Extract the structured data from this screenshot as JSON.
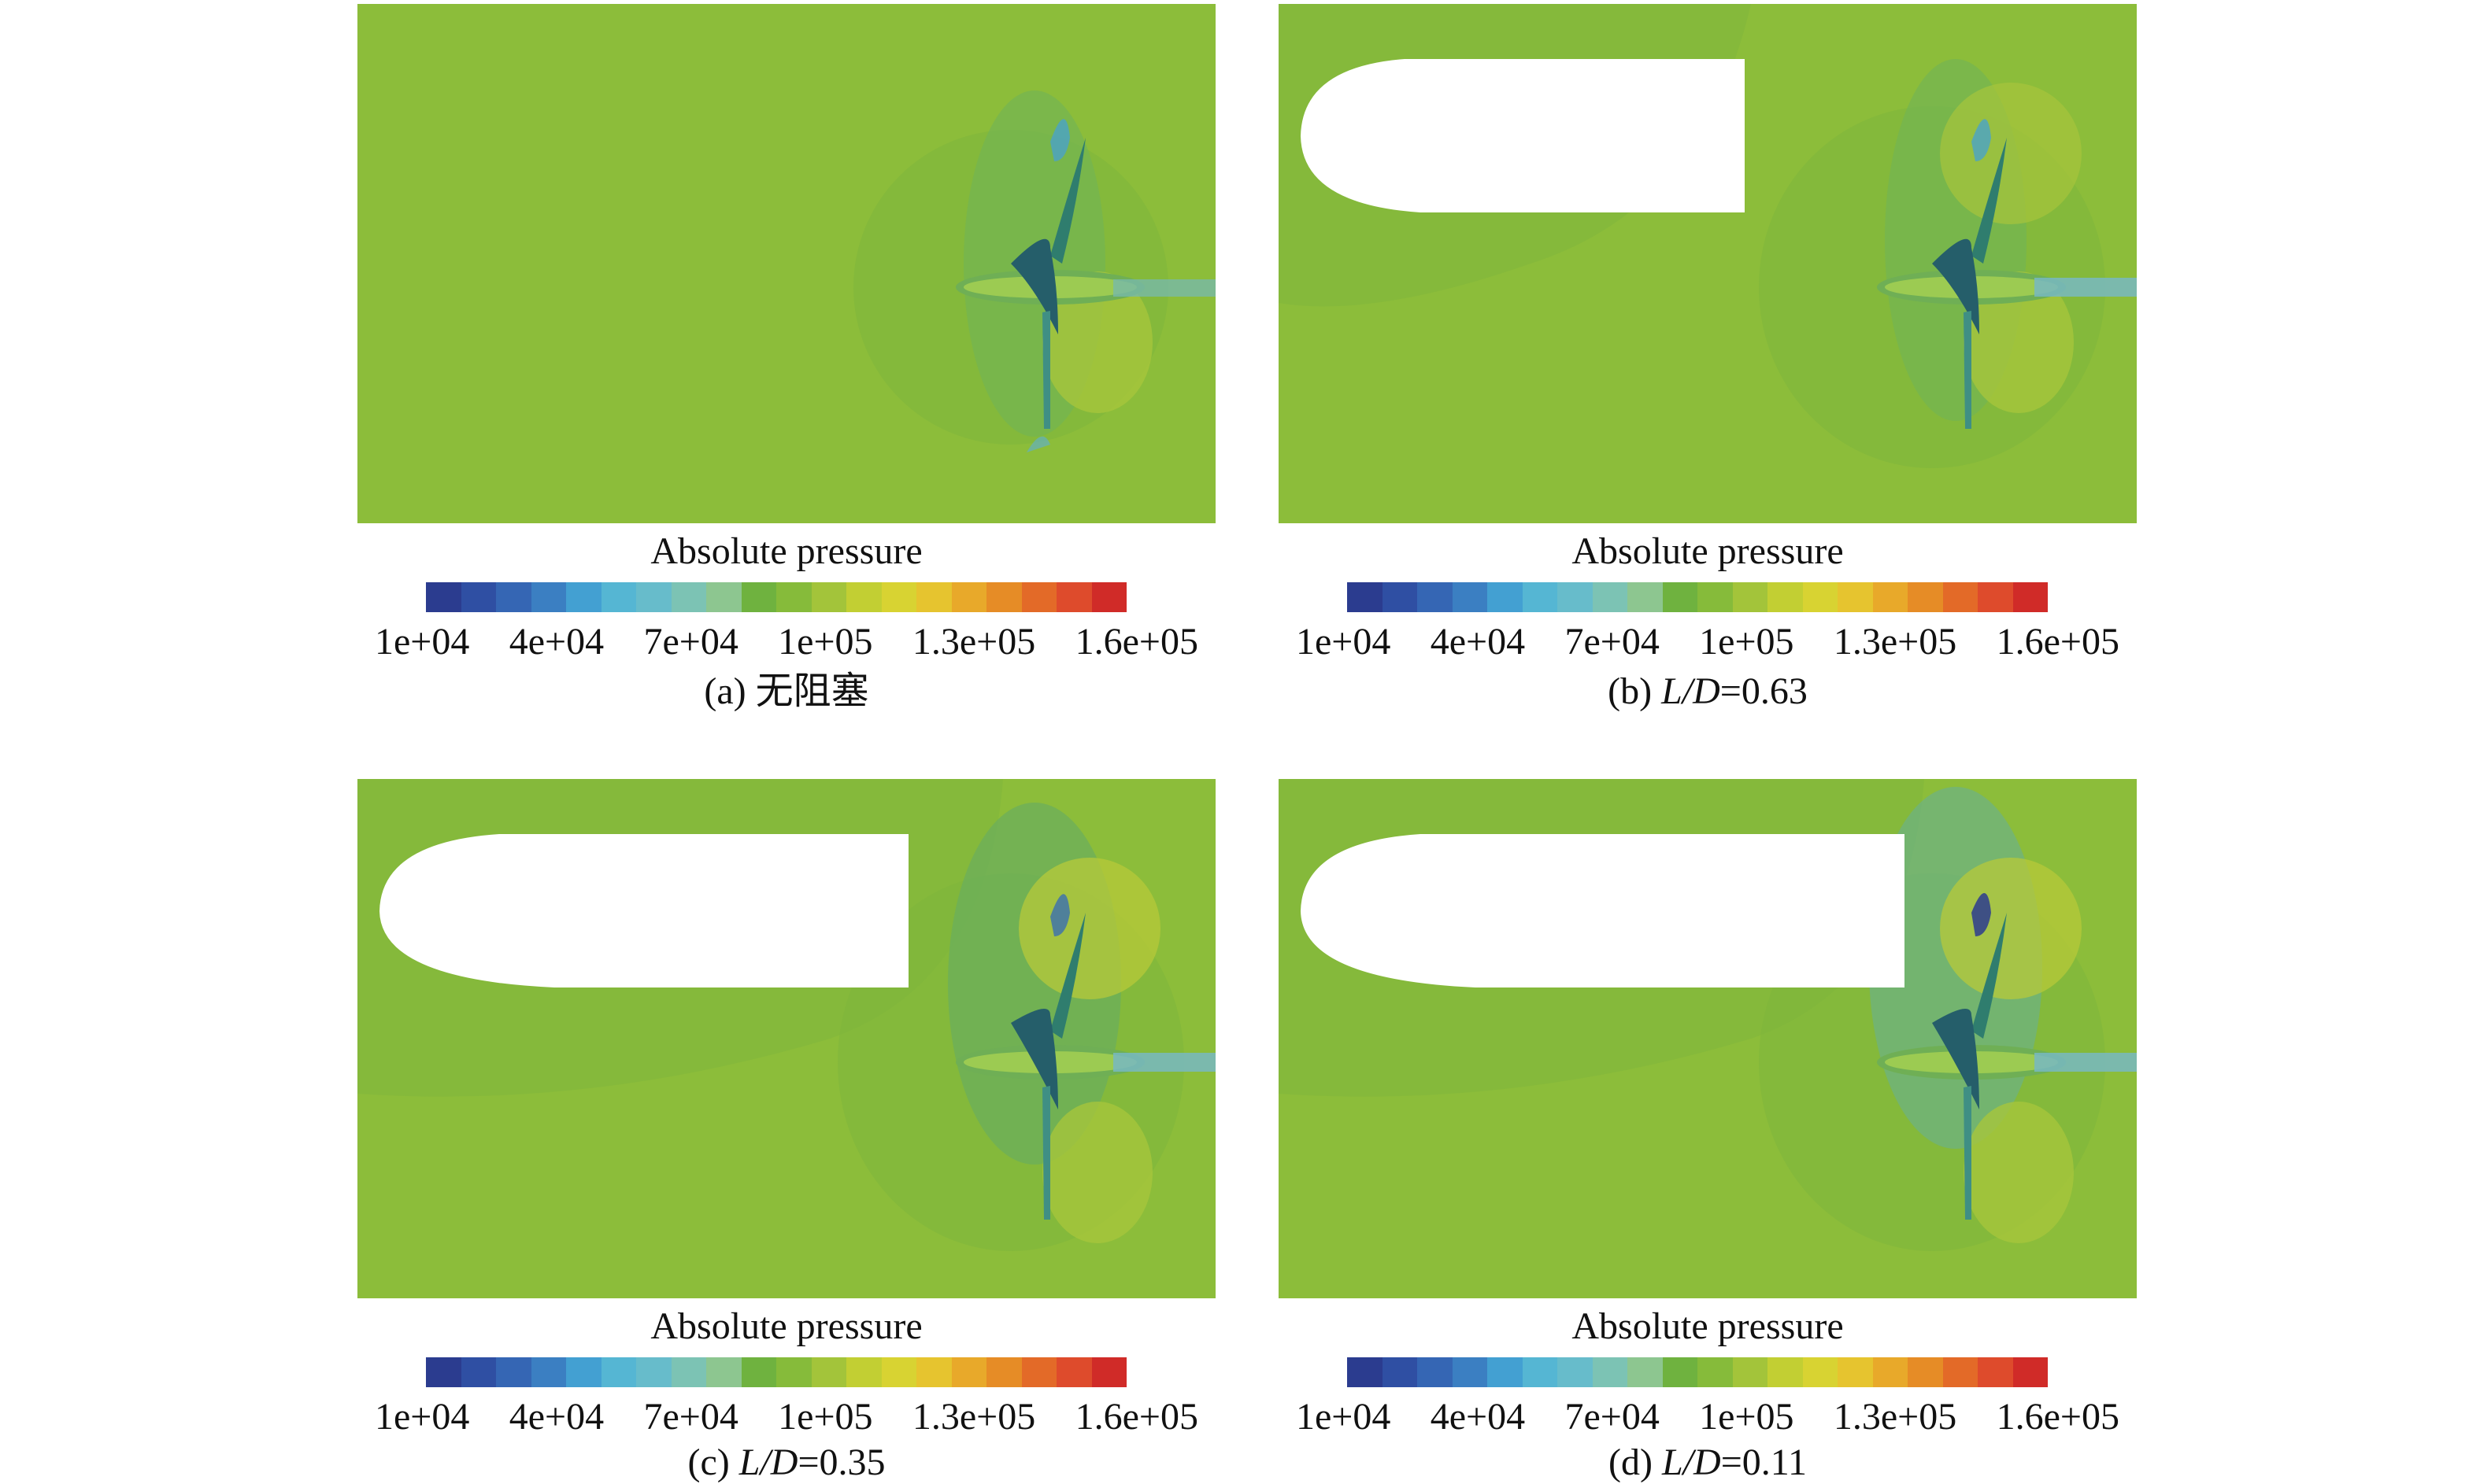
{
  "panels": [
    {
      "hull": false,
      "colorbar_title": "Absolute pressure",
      "ticks": [
        "1e+04",
        "4e+04",
        "7e+04",
        "1e+05",
        "1.3e+05",
        "1.6e+05"
      ],
      "caption": {
        "prefix": "(a) 无阻塞",
        "var": "",
        "value": ""
      }
    },
    {
      "hull": true,
      "colorbar_title": "Absolute pressure",
      "ticks": [
        "1e+04",
        "4e+04",
        "7e+04",
        "1e+05",
        "1.3e+05",
        "1.6e+05"
      ],
      "caption": {
        "prefix": "(b) ",
        "var": "L/D",
        "value": "=0.63"
      }
    },
    {
      "hull": true,
      "colorbar_title": "Absolute pressure",
      "ticks": [
        "1e+04",
        "4e+04",
        "7e+04",
        "1e+05",
        "1.3e+05",
        "1.6e+05"
      ],
      "caption": {
        "prefix": "(c) ",
        "var": "L/D",
        "value": "=0.35"
      }
    },
    {
      "hull": true,
      "colorbar_title": "Absolute pressure",
      "ticks": [
        "1e+04",
        "4e+04",
        "7e+04",
        "1e+05",
        "1.3e+05",
        "1.6e+05"
      ],
      "caption": {
        "prefix": "(d) ",
        "var": "L/D",
        "value": "=0.11"
      }
    }
  ],
  "colormap": [
    "#2b3c8f",
    "#2f4fa3",
    "#3566b4",
    "#3b7fc2",
    "#43a0d2",
    "#55b6d3",
    "#67bccb",
    "#7cc3b4",
    "#8dc690",
    "#6fb23f",
    "#86bb3a",
    "#a3c43a",
    "#c2cf33",
    "#d8d332",
    "#e6c42f",
    "#e8a92a",
    "#e68c26",
    "#e36a28",
    "#de4b2c",
    "#d02b28"
  ]
}
